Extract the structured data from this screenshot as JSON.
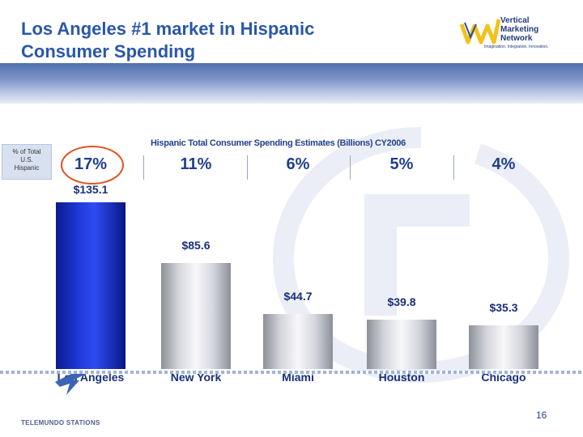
{
  "slide": {
    "title_line1": "Los Angeles #1 market in Hispanic",
    "title_line2": "Consumer Spending",
    "page_number": "16"
  },
  "logo": {
    "name_line1": "Vertical",
    "name_line2": "Marketing",
    "name_line3": "Network",
    "tagline": "Imagination. Integration. Innovation."
  },
  "footer": {
    "brand": "TELEMUNDO STATIONS"
  },
  "legend_box": {
    "line1": "% of Total",
    "line2": "U.S.",
    "line3": "Hispanic"
  },
  "colors": {
    "title": "#2a57a8",
    "highlight_bar": "#1d36d6",
    "ring": "#e0501f"
  },
  "chart_data": {
    "type": "bar",
    "title": "Hispanic Total Consumer Spending Estimates (Billions) CY2006",
    "categories": [
      "Los Angeles",
      "New York",
      "Miami",
      "Houston",
      "Chicago"
    ],
    "values": [
      135.1,
      85.6,
      44.7,
      39.8,
      35.3
    ],
    "value_labels": [
      "$135.1",
      "$85.6",
      "$44.7",
      "$39.8",
      "$35.3"
    ],
    "share_labels": [
      "17%",
      "11%",
      "6%",
      "5%",
      "4%"
    ],
    "xlabel": "",
    "ylabel": "",
    "ylim": [
      0,
      135.1
    ]
  }
}
